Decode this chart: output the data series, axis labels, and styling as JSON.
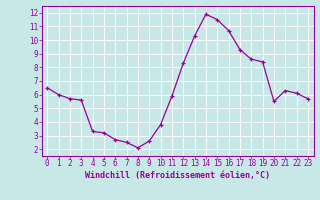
{
  "hours": [
    0,
    1,
    2,
    3,
    4,
    5,
    6,
    7,
    8,
    9,
    10,
    11,
    12,
    13,
    14,
    15,
    16,
    17,
    18,
    19,
    20,
    21,
    22,
    23
  ],
  "values": [
    6.5,
    6.0,
    5.7,
    5.6,
    3.3,
    3.2,
    2.7,
    2.5,
    2.1,
    2.6,
    3.8,
    5.9,
    8.3,
    10.3,
    11.9,
    11.5,
    10.7,
    9.3,
    8.6,
    8.4,
    5.5,
    6.3,
    6.1,
    5.7
  ],
  "line_color": "#990099",
  "marker": "+",
  "bg_color": "#c8e8e8",
  "grid_color": "#ffffff",
  "xlabel": "Windchill (Refroidissement éolien,°C)",
  "xlim": [
    -0.5,
    23.5
  ],
  "ylim": [
    1.5,
    12.5
  ],
  "yticks": [
    2,
    3,
    4,
    5,
    6,
    7,
    8,
    9,
    10,
    11,
    12
  ],
  "xticks": [
    0,
    1,
    2,
    3,
    4,
    5,
    6,
    7,
    8,
    9,
    10,
    11,
    12,
    13,
    14,
    15,
    16,
    17,
    18,
    19,
    20,
    21,
    22,
    23
  ],
  "tick_color": "#990099",
  "label_color": "#990099",
  "spine_color": "#990099"
}
